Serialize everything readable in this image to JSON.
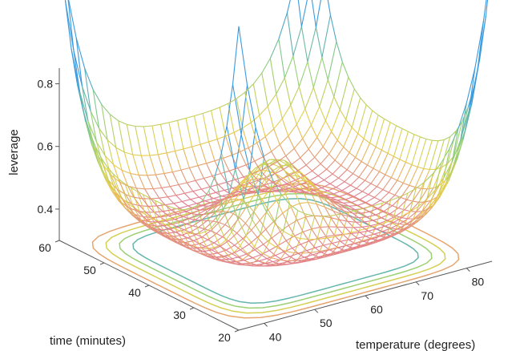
{
  "chart_data": {
    "type": "surface-mesh",
    "title": "",
    "xlabel": "temperature (degrees)",
    "ylabel": "time (minutes)",
    "zlabel": "leverage",
    "x_ticks": [
      "40",
      "50",
      "60",
      "70",
      "80"
    ],
    "y_ticks": [
      "20",
      "30",
      "40",
      "50",
      "60"
    ],
    "z_ticks": [
      "0.4",
      "0.6",
      "0.8"
    ],
    "xlim": [
      35,
      85
    ],
    "ylim": [
      20,
      60
    ],
    "zlim": [
      0.3,
      0.85
    ],
    "surface": {
      "description_values": {
        "corner_leverage": 0.83,
        "center_leverage": 0.59,
        "edge_midpoint_leverage": 0.54,
        "minimum_leverage": 0.36
      }
    },
    "contours": {
      "placement": "floor",
      "levels": [
        0.4,
        0.5,
        0.6,
        0.7
      ]
    },
    "colormap": [
      "#e06aa0",
      "#e8d04a",
      "#8fd07a",
      "#3a9ae0"
    ],
    "grid": false
  }
}
